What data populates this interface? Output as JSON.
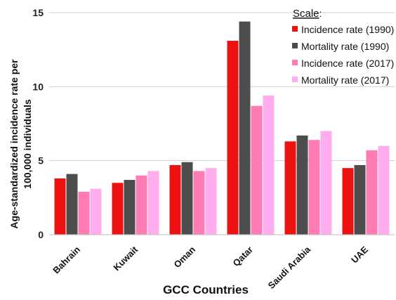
{
  "chart_data": {
    "type": "bar",
    "title": "",
    "xlabel": "GCC Countries",
    "ylabel_line1": "Age-standardized incidence rate per",
    "ylabel_line2": "100,000 individuals",
    "ylim": [
      0,
      15
    ],
    "yticks": [
      0,
      5,
      10,
      15
    ],
    "grid": "horizontal",
    "legend_placement": "top-right",
    "legend_title": "Scale",
    "legend_title_suffix": ":",
    "categories": [
      "Bahrain",
      "Kuwait",
      "Oman",
      "Qatar",
      "Saudi Arabia",
      "UAE"
    ],
    "series": [
      {
        "name": "Incidence rate (1990)",
        "color": "#ee1111",
        "values": [
          3.8,
          3.5,
          4.7,
          13.1,
          6.3,
          4.5
        ]
      },
      {
        "name": "Mortality rate (1990)",
        "color": "#4d4d4d",
        "values": [
          4.1,
          3.7,
          4.9,
          14.4,
          6.7,
          4.7
        ]
      },
      {
        "name": "Incidence rate (2017)",
        "color": "#ff7bb3",
        "values": [
          2.9,
          4.0,
          4.3,
          8.7,
          6.4,
          5.7
        ]
      },
      {
        "name": "Mortality rate (2017)",
        "color": "#ffadee",
        "values": [
          3.1,
          4.3,
          4.5,
          9.4,
          7.0,
          6.0
        ]
      }
    ]
  }
}
